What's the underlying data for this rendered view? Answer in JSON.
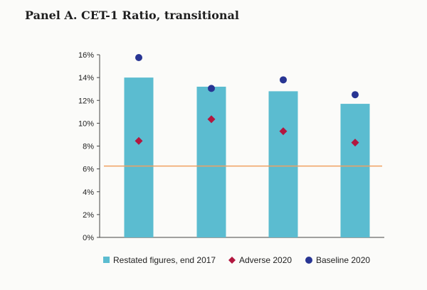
{
  "title": "Panel A. CET-1 Ratio, transitional",
  "chart_data": {
    "type": "bar",
    "categories": [
      "",
      "",
      "",
      ""
    ],
    "yticks": [
      "0%",
      "2%",
      "4%",
      "6%",
      "8%",
      "10%",
      "12%",
      "14%",
      "16%"
    ],
    "ylim": [
      0,
      16
    ],
    "series": [
      {
        "name": "Restated figures, end 2017",
        "kind": "bar",
        "values": [
          14.0,
          13.2,
          12.8,
          11.7
        ],
        "color": "#5bbcd0"
      },
      {
        "name": "Adverse 2020",
        "kind": "diamond",
        "values": [
          8.45,
          10.35,
          9.3,
          8.3
        ],
        "color": "#b2173f"
      },
      {
        "name": "Baseline 2020",
        "kind": "circle",
        "values": [
          15.75,
          13.05,
          13.8,
          12.5
        ],
        "color": "#283593"
      }
    ],
    "reference_line": {
      "value": 6.25,
      "color": "#f0a060"
    },
    "legend_position": "bottom"
  }
}
